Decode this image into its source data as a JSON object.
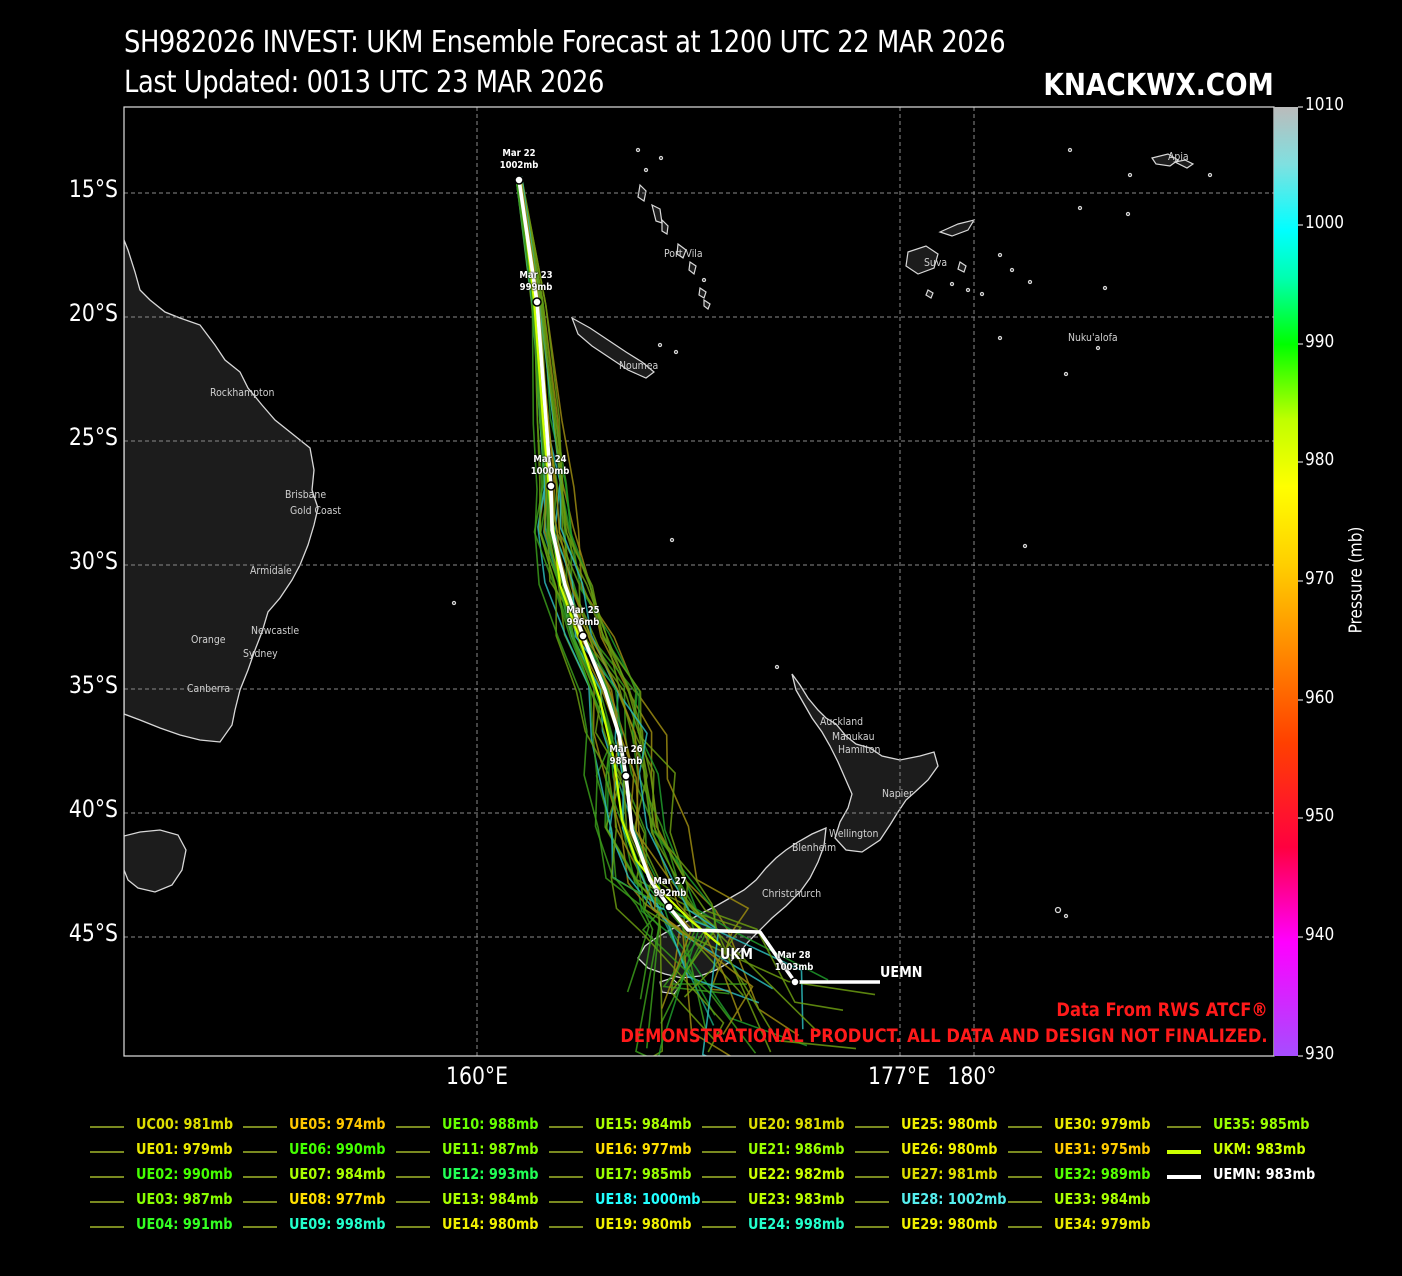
{
  "header": {
    "title_line1": "SH982026 INVEST: UKM Ensemble Forecast at 1200 UTC 22 MAR 2026",
    "title_line2": "Last Updated: 0013 UTC 23 MAR 2026",
    "brand": "KNACKWX.COM"
  },
  "axes": {
    "lat_labels": [
      "15°S",
      "20°S",
      "25°S",
      "30°S",
      "35°S",
      "40°S",
      "45°S"
    ],
    "lon_labels": [
      "160°E",
      "177°E",
      "180°"
    ]
  },
  "colorbar": {
    "title": "Pressure (mb)",
    "ticks": [
      "1010",
      "1000",
      "990",
      "980",
      "970",
      "960",
      "950",
      "940",
      "930"
    ],
    "stops": [
      "#a64dff",
      "#ff00ff",
      "#ff0040",
      "#ff4000",
      "#ff8c00",
      "#ffd000",
      "#ffff00",
      "#c0ff00",
      "#00ff00",
      "#00ffb0",
      "#00ffff",
      "#80e0e0",
      "#bbbbbb"
    ]
  },
  "credits": {
    "source": "Data From RWS ATCF®",
    "disclaimer": "DEMONSTRATIONAL PRODUCT. ALL DATA AND DESIGN NOT FINALIZED."
  },
  "places": [
    "Apia",
    "Port Vila",
    "Suva",
    "Nuku'alofa",
    "Noumea",
    "Rockhampton",
    "Brisbane",
    "Gold Coast",
    "Armidale",
    "Newcastle",
    "Orange",
    "Sydney",
    "Canberra",
    "Auckland",
    "Manukau",
    "Hamilton",
    "Napier",
    "Wellington",
    "Blenheim",
    "Christchurch"
  ],
  "uemn_markers": [
    {
      "date": "Mar 22",
      "pressure": "1002mb"
    },
    {
      "date": "Mar 23",
      "pressure": "999mb"
    },
    {
      "date": "Mar 24",
      "pressure": "1000mb"
    },
    {
      "date": "Mar 25",
      "pressure": "996mb"
    },
    {
      "date": "Mar 26",
      "pressure": "985mb"
    },
    {
      "date": "Mar 27",
      "pressure": "992mb"
    },
    {
      "date": "Mar 28",
      "pressure": "1003mb"
    }
  ],
  "track_end_labels": {
    "ukm": "UKM",
    "uemn": "UEMN"
  },
  "legend": [
    {
      "name": "UC00",
      "pressure": "981mb",
      "color": "#dede00"
    },
    {
      "name": "UE01",
      "pressure": "979mb",
      "color": "#eaea00"
    },
    {
      "name": "UE02",
      "pressure": "990mb",
      "color": "#44ff00"
    },
    {
      "name": "UE03",
      "pressure": "987mb",
      "color": "#88ff00"
    },
    {
      "name": "UE04",
      "pressure": "991mb",
      "color": "#33ff22"
    },
    {
      "name": "UE05",
      "pressure": "974mb",
      "color": "#ffc800"
    },
    {
      "name": "UE06",
      "pressure": "990mb",
      "color": "#44ff00"
    },
    {
      "name": "UE07",
      "pressure": "984mb",
      "color": "#aaff00"
    },
    {
      "name": "UE08",
      "pressure": "977mb",
      "color": "#ffe000"
    },
    {
      "name": "UE09",
      "pressure": "998mb",
      "color": "#22ffcc"
    },
    {
      "name": "UE10",
      "pressure": "988mb",
      "color": "#66ff00"
    },
    {
      "name": "UE11",
      "pressure": "987mb",
      "color": "#88ff00"
    },
    {
      "name": "UE12",
      "pressure": "993mb",
      "color": "#22ff55"
    },
    {
      "name": "UE13",
      "pressure": "984mb",
      "color": "#aaff00"
    },
    {
      "name": "UE14",
      "pressure": "980mb",
      "color": "#f0f000"
    },
    {
      "name": "UE15",
      "pressure": "984mb",
      "color": "#aaff00"
    },
    {
      "name": "UE16",
      "pressure": "977mb",
      "color": "#ffe000"
    },
    {
      "name": "UE17",
      "pressure": "985mb",
      "color": "#99ff00"
    },
    {
      "name": "UE18",
      "pressure": "1000mb",
      "color": "#22ffff"
    },
    {
      "name": "UE19",
      "pressure": "980mb",
      "color": "#f0f000"
    },
    {
      "name": "UE20",
      "pressure": "981mb",
      "color": "#dede00"
    },
    {
      "name": "UE21",
      "pressure": "986mb",
      "color": "#99ff00"
    },
    {
      "name": "UE22",
      "pressure": "982mb",
      "color": "#ccff00"
    },
    {
      "name": "UE23",
      "pressure": "983mb",
      "color": "#bbff00"
    },
    {
      "name": "UE24",
      "pressure": "998mb",
      "color": "#22ffcc"
    },
    {
      "name": "UE25",
      "pressure": "980mb",
      "color": "#f0f000"
    },
    {
      "name": "UE26",
      "pressure": "980mb",
      "color": "#f0f000"
    },
    {
      "name": "UE27",
      "pressure": "981mb",
      "color": "#dede00"
    },
    {
      "name": "UE28",
      "pressure": "1002mb",
      "color": "#55eeee"
    },
    {
      "name": "UE29",
      "pressure": "980mb",
      "color": "#f0f000"
    },
    {
      "name": "UE30",
      "pressure": "979mb",
      "color": "#eaea00"
    },
    {
      "name": "UE31",
      "pressure": "975mb",
      "color": "#ffcc00"
    },
    {
      "name": "UE32",
      "pressure": "989mb",
      "color": "#55ff00"
    },
    {
      "name": "UE33",
      "pressure": "984mb",
      "color": "#aaff00"
    },
    {
      "name": "UE34",
      "pressure": "979mb",
      "color": "#eaea00"
    },
    {
      "name": "UE35",
      "pressure": "985mb",
      "color": "#99ff00"
    },
    {
      "name": "UKM",
      "pressure": "983mb",
      "color": "#ccff00"
    },
    {
      "name": "UEMN",
      "pressure": "983mb",
      "color": "#ffffff"
    }
  ]
}
